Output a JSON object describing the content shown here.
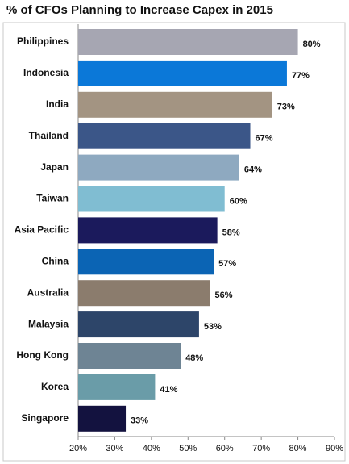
{
  "chart_data": {
    "type": "bar",
    "orientation": "horizontal",
    "title": "% of CFOs Planning to Increase Capex in 2015",
    "categories": [
      "Philippines",
      "Indonesia",
      "India",
      "Thailand",
      "Japan",
      "Taiwan",
      "Asia Pacific",
      "China",
      "Australia",
      "Malaysia",
      "Hong Kong",
      "Korea",
      "Singapore"
    ],
    "values": [
      80,
      77,
      73,
      67,
      64,
      60,
      58,
      57,
      56,
      53,
      48,
      41,
      33
    ],
    "value_labels": [
      "80%",
      "77%",
      "73%",
      "67%",
      "64%",
      "60%",
      "58%",
      "57%",
      "56%",
      "53%",
      "48%",
      "41%",
      "33%"
    ],
    "colors": [
      "#a6a6b2",
      "#0b78d8",
      "#a39482",
      "#3b5688",
      "#8ea9c0",
      "#80bdd2",
      "#1b1a5c",
      "#0b64b4",
      "#8b7c6d",
      "#2d4569",
      "#6e8494",
      "#6a9ca8",
      "#13123f"
    ],
    "xlim": [
      20,
      90
    ],
    "xticks": [
      {
        "value": 20,
        "label": "20%"
      },
      {
        "value": 30,
        "label": "30%"
      },
      {
        "value": 40,
        "label": "40%"
      },
      {
        "value": 50,
        "label": "50%"
      },
      {
        "value": 60,
        "label": "60%"
      },
      {
        "value": 70,
        "label": "70%"
      },
      {
        "value": 80,
        "label": "80%"
      },
      {
        "value": 90,
        "label": "90%"
      }
    ]
  }
}
